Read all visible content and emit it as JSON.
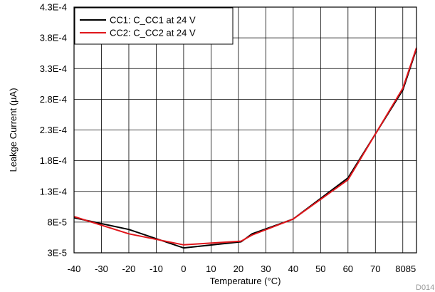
{
  "chart_data": {
    "type": "line",
    "xlabel": "Temperature (°C)",
    "ylabel": "Leakge Current (µA)",
    "xlim": [
      -40,
      85
    ],
    "ylim": [
      3e-05,
      0.00043
    ],
    "x_ticks": [
      -40,
      -30,
      -20,
      -10,
      0,
      10,
      20,
      30,
      40,
      50,
      60,
      70,
      80,
      85
    ],
    "x_tick_labels": [
      "-40",
      "-30",
      "-20",
      "-10",
      "0",
      "10",
      "20",
      "30",
      "40",
      "50",
      "60",
      "70",
      "80",
      "85"
    ],
    "y_ticks": [
      3e-05,
      8e-05,
      0.00013,
      0.00018,
      0.00023,
      0.00028,
      0.00033,
      0.00038,
      0.00043
    ],
    "y_tick_labels": [
      "3E-5",
      "8E-5",
      "1.3E-4",
      "1.8E-4",
      "2.3E-4",
      "2.8E-4",
      "3.3E-4",
      "3.8E-4",
      "4.3E-4"
    ],
    "grid": true,
    "legend_position": "top-left",
    "series": [
      {
        "name": "CC1: C_CC1 at 24 V",
        "color": "#000000",
        "x": [
          -40,
          -20,
          0,
          21,
          25,
          40,
          60,
          80,
          85
        ],
        "y": [
          8.7e-05,
          6.8e-05,
          3.8e-05,
          4.8e-05,
          6.1e-05,
          8.5e-05,
          0.000152,
          0.000295,
          0.000362
        ]
      },
      {
        "name": "CC2: C_CC2 at 24 V",
        "color": "#e0161b",
        "x": [
          -40,
          -20,
          0,
          21,
          25,
          40,
          60,
          80,
          85
        ],
        "y": [
          8.9e-05,
          6.1e-05,
          4.3e-05,
          4.9e-05,
          5.9e-05,
          8.5e-05,
          0.000149,
          0.000298,
          0.000364
        ]
      }
    ],
    "figure_code": "D014"
  }
}
